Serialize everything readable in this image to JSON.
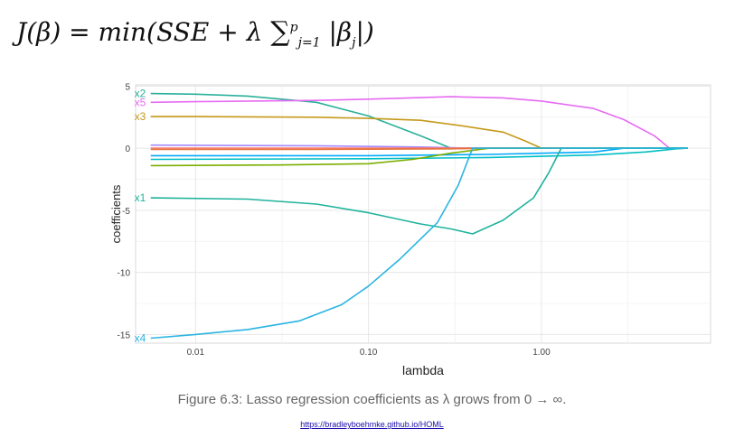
{
  "formula": {
    "lhs": "J(β) = min(SSE",
    "plus": "+ λ",
    "sum": "∑",
    "sub": "j=1",
    "sup": "p",
    "term": "|β",
    "term_sub": "j",
    "close": "|)"
  },
  "caption": "Figure 6.3: Lasso regression coefficients as λ grows from 0 → ∞.",
  "source_link": "https://bradleyboehmke.github.io/HOML",
  "chart_data": {
    "type": "line",
    "xlabel": "lambda",
    "ylabel": "coefficients",
    "x_scale": "log",
    "xlim": [
      0.0045,
      9.5
    ],
    "ylim": [
      -15.7,
      5.1
    ],
    "x_ticks": [
      0.01,
      0.1,
      1.0
    ],
    "x_tick_labels": [
      "0.01",
      "0.10",
      "1.00"
    ],
    "y_ticks": [
      5,
      0,
      -5,
      -10,
      -15
    ],
    "y_tick_labels": [
      "5",
      "0",
      "-5",
      "-10",
      "-15"
    ],
    "grid": true,
    "legend": "none",
    "series": [
      {
        "name": "x2",
        "label": "x2",
        "color": "#2ab09a",
        "points": [
          [
            0.0055,
            4.4
          ],
          [
            0.01,
            4.35
          ],
          [
            0.02,
            4.2
          ],
          [
            0.05,
            3.7
          ],
          [
            0.1,
            2.6
          ],
          [
            0.2,
            1.0
          ],
          [
            0.3,
            0.0
          ],
          [
            7,
            0.0
          ]
        ]
      },
      {
        "name": "x5",
        "label": "x5",
        "color": "#e76bf3",
        "points": [
          [
            0.0055,
            3.7
          ],
          [
            0.01,
            3.75
          ],
          [
            0.05,
            3.85
          ],
          [
            0.1,
            3.95
          ],
          [
            0.3,
            4.15
          ],
          [
            0.6,
            4.05
          ],
          [
            1.0,
            3.8
          ],
          [
            2.0,
            3.2
          ],
          [
            3.0,
            2.3
          ],
          [
            4.5,
            1.0
          ],
          [
            5.5,
            0.0
          ],
          [
            7,
            0.0
          ]
        ]
      },
      {
        "name": "x3",
        "label": "x3",
        "color": "#c59a1a",
        "points": [
          [
            0.0055,
            2.55
          ],
          [
            0.01,
            2.55
          ],
          [
            0.05,
            2.5
          ],
          [
            0.1,
            2.4
          ],
          [
            0.2,
            2.25
          ],
          [
            0.35,
            1.8
          ],
          [
            0.6,
            1.3
          ],
          [
            0.8,
            0.6
          ],
          [
            1.0,
            0.0
          ],
          [
            7,
            0.0
          ]
        ]
      },
      {
        "name": "",
        "label": "",
        "color": "#a58aff",
        "points": [
          [
            0.0055,
            0.25
          ],
          [
            0.05,
            0.2
          ],
          [
            0.2,
            0.1
          ],
          [
            0.4,
            0.0
          ],
          [
            7,
            0.0
          ]
        ]
      },
      {
        "name": "",
        "label": "",
        "color": "#f8766d",
        "points": [
          [
            0.0055,
            0.0
          ],
          [
            7,
            0.0
          ]
        ]
      },
      {
        "name": "",
        "label": "",
        "color": "#e8743b",
        "points": [
          [
            0.0055,
            -0.1
          ],
          [
            0.05,
            -0.1
          ],
          [
            0.3,
            -0.05
          ],
          [
            0.5,
            0.0
          ],
          [
            7,
            0.0
          ]
        ]
      },
      {
        "name": "",
        "label": "",
        "color": "#00a9ff",
        "points": [
          [
            0.0055,
            -0.6
          ],
          [
            0.1,
            -0.6
          ],
          [
            0.5,
            -0.5
          ],
          [
            2.0,
            -0.3
          ],
          [
            3.0,
            0.0
          ],
          [
            7,
            0.0
          ]
        ]
      },
      {
        "name": "",
        "label": "",
        "color": "#00bfc4",
        "points": [
          [
            0.0055,
            -0.9
          ],
          [
            0.1,
            -0.85
          ],
          [
            0.5,
            -0.75
          ],
          [
            2.0,
            -0.55
          ],
          [
            4.0,
            -0.3
          ],
          [
            6.0,
            -0.05
          ],
          [
            7,
            0.0
          ]
        ]
      },
      {
        "name": "",
        "label": "",
        "color": "#7cae00",
        "points": [
          [
            0.0055,
            -1.4
          ],
          [
            0.03,
            -1.35
          ],
          [
            0.1,
            -1.25
          ],
          [
            0.18,
            -0.9
          ],
          [
            0.3,
            -0.4
          ],
          [
            0.5,
            0.0
          ],
          [
            7,
            0.0
          ]
        ]
      },
      {
        "name": "x1",
        "label": "x1",
        "color": "#1fb39c",
        "points": [
          [
            0.0055,
            -4.0
          ],
          [
            0.02,
            -4.1
          ],
          [
            0.05,
            -4.5
          ],
          [
            0.1,
            -5.2
          ],
          [
            0.2,
            -6.1
          ],
          [
            0.3,
            -6.5
          ],
          [
            0.4,
            -6.9
          ],
          [
            0.6,
            -5.8
          ],
          [
            0.9,
            -4.0
          ],
          [
            1.1,
            -2.0
          ],
          [
            1.3,
            0.0
          ],
          [
            7,
            0.0
          ]
        ]
      },
      {
        "name": "x4",
        "label": "x4",
        "color": "#2ab4e2",
        "points": [
          [
            0.0055,
            -15.3
          ],
          [
            0.01,
            -15.0
          ],
          [
            0.02,
            -14.6
          ],
          [
            0.04,
            -13.9
          ],
          [
            0.07,
            -12.6
          ],
          [
            0.1,
            -11.1
          ],
          [
            0.15,
            -9.0
          ],
          [
            0.25,
            -6.0
          ],
          [
            0.33,
            -3.0
          ],
          [
            0.4,
            0.0
          ],
          [
            7,
            0.0
          ]
        ]
      }
    ]
  }
}
